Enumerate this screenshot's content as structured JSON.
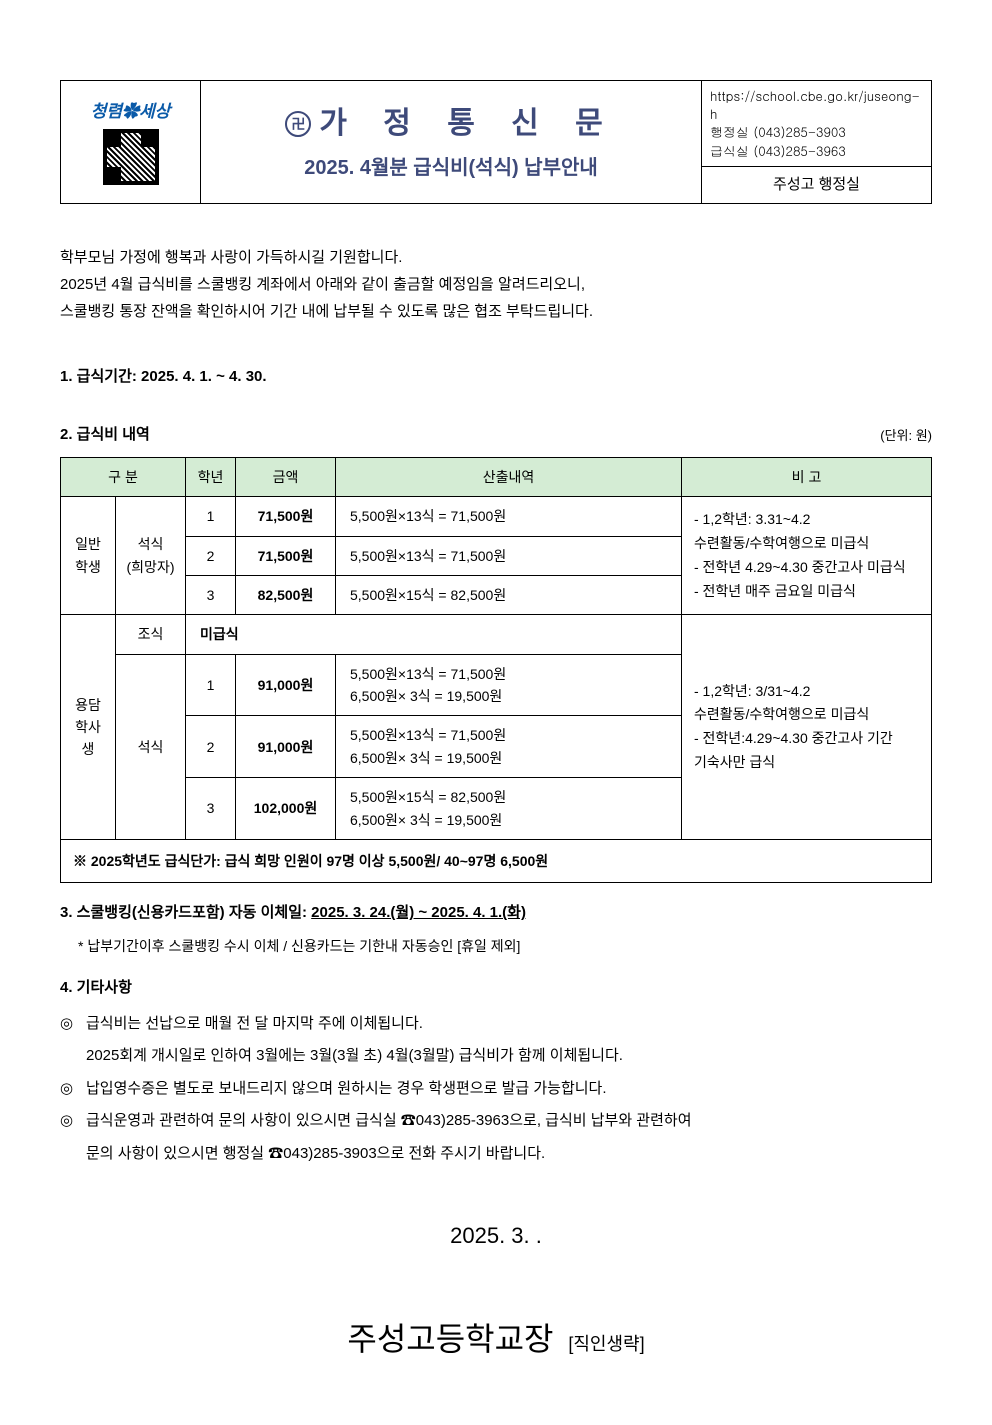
{
  "header": {
    "logo_text": "청렴✿세상",
    "title_main": "가 정 통 신 문",
    "title_sub": "2025. 4월분 급식비(석식) 납부안내",
    "contact_block": "https://school.cbe.go.kr/juseong-h\n행정실  (043)285-3903\n급식실  (043)285-3963",
    "office_label": "주성고 행정실"
  },
  "intro": {
    "line1": "학부모님 가정에 행복과 사랑이 가득하시길 기원합니다.",
    "line2": "2025년 4월 급식비를 스쿨뱅킹 계좌에서 아래와 같이 출금할 예정임을 알려드리오니,",
    "line3": "스쿨뱅킹 통장 잔액을 확인하시어 기간 내에 납부될 수 있도록 많은 협조 부탁드립니다."
  },
  "section1": {
    "label": "1.  급식기간: 2025.  4.  1.  ~  4.  30."
  },
  "section2": {
    "label": "2.  급식비 내역",
    "unit": "(단위: 원)",
    "columns": {
      "c1": "구  분",
      "c2": "학년",
      "c3": "금액",
      "c4": "산출내역",
      "c5": "비  고"
    },
    "group1": {
      "cat1": "일반\n학생",
      "cat2": "석식\n(희망자)",
      "rows": [
        {
          "grade": "1",
          "amount": "71,500원",
          "calc": "5,500원×13식  =  71,500원"
        },
        {
          "grade": "2",
          "amount": "71,500원",
          "calc": "5,500원×13식  =  71,500원"
        },
        {
          "grade": "3",
          "amount": "82,500원",
          "calc": "5,500원×15식  =  82,500원"
        }
      ],
      "note": "- 1,2학년: 3.31~4.2\n      수련활동/수학여행으로 미급식\n- 전학년 4.29~4.30 중간고사 미급식\n- 전학년 매주 금요일 미급식"
    },
    "group2": {
      "cat1": "용담\n학사생",
      "breakfast_label": "조식",
      "breakfast_value": "미급식",
      "dinner_label": "석식",
      "rows": [
        {
          "grade": "1",
          "amount": "91,000원",
          "calc": "5,500원×13식  =  71,500원\n6,500원×  3식  =  19,500원"
        },
        {
          "grade": "2",
          "amount": "91,000원",
          "calc": "5,500원×13식  =  71,500원\n6,500원×  3식  =  19,500원"
        },
        {
          "grade": "3",
          "amount": "102,000원",
          "calc": "5,500원×15식  =  82,500원\n6,500원×  3식  =  19,500원"
        }
      ],
      "note": "- 1,2학년: 3/31~4.2\n      수련활동/수학여행으로 미급식\n- 전학년:4.29~4.30 중간고사 기간\n      기숙사만 급식"
    },
    "footnote": "※ 2025학년도 급식단가: 급식 희망  인원이 97명 이상 5,500원/ 40~97명 6,500원"
  },
  "section3": {
    "label_prefix": "3.  스쿨뱅킹(신용카드포함) 자동  이체일:  ",
    "underline_text": "2025.  3.  24.(월)  ~  2025.  4.  1.(화)",
    "sub": "* 납부기간이후 스쿨뱅킹 수시 이체 / 신용카드는 기한내 자동승인 [휴일 제외]"
  },
  "section4": {
    "label": "4.  기타사항",
    "items": [
      {
        "mark": "◎",
        "text": "급식비는 선납으로 매월 전 달 마지막 주에 이체됩니다.",
        "cont": "2025회계 개시일로 인하여 3월에는 3월(3월 초) 4월(3월말) 급식비가 함께 이체됩니다."
      },
      {
        "mark": "◎",
        "text": "납입영수증은 별도로 보내드리지 않으며 원하시는 경우 학생편으로 발급 가능합니다."
      },
      {
        "mark": "◎",
        "text": "급식운영과 관련하여 문의 사항이 있으시면 급식실 ☎043)285-3963으로, 급식비 납부와 관련하여",
        "cont": "문의 사항이 있으시면  행정실 ☎043)285-3903으로 전화 주시기 바랍니다."
      }
    ]
  },
  "footer": {
    "date": "2025.  3.   .",
    "signer": "주성고등학교장",
    "stamp": "[직인생략]"
  }
}
